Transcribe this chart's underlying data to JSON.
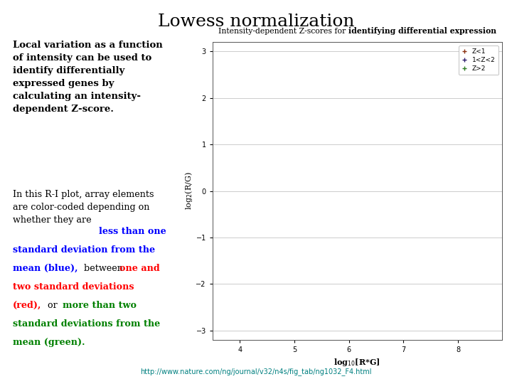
{
  "title": "Lowess normalization",
  "title_fontsize": 18,
  "background_color": "#ffffff",
  "plot_title_normal": "Intensity-dependent Z-scores for ",
  "plot_title_bold": "identifying differential expression",
  "xlabel": "log$_{10}$[R*G]",
  "ylabel": "log$_2$(R/G)",
  "xlim": [
    3.5,
    8.8
  ],
  "ylim": [
    -3.2,
    3.2
  ],
  "yticks": [
    -3,
    -2,
    -1,
    0,
    1,
    2,
    3
  ],
  "legend_labels": [
    "Z<1",
    "1<Z<2",
    "Z>2"
  ],
  "dot_red": "#8B3010",
  "dot_blue": "#2B1B6B",
  "dot_green": "#2E7B22",
  "url_text": "http://www.nature.com/ng/journal/v32/n4s/fig_tab/ng1032_F4.html",
  "url_color": "#008080",
  "seed": 42
}
